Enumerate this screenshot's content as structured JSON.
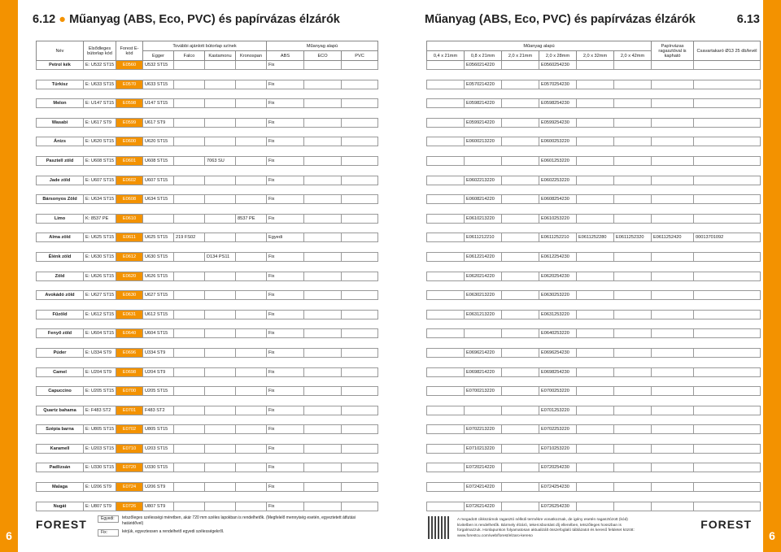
{
  "left": {
    "page_number": "6.12",
    "title": "Műanyag (ABS, Eco, PVC) és papírvázas élzárók",
    "headers": {
      "nev": "Név",
      "elodleges": "Elsődleges bútorlap kód",
      "forest": "Forest E-kód",
      "tovabbi": "További ajánlott bútorlap színek",
      "egger": "Egger",
      "falco": "Falco",
      "kastamonu": "Kastamonu",
      "kronospan": "Kronospan",
      "muanyag": "Műanyag alapú",
      "abs": "ABS",
      "eco": "ECO",
      "pvc": "PVC"
    },
    "rows": [
      {
        "name": "Petrol kék",
        "primary": "E: U532 ST15",
        "ecode": "E0560",
        "egger": "U532 ST15",
        "falco": "",
        "kasta": "",
        "krono": "",
        "abs": "Fix",
        "eco": "",
        "pvc": ""
      },
      {
        "name": "Türkisz",
        "primary": "E: U633 ST15",
        "ecode": "E0570",
        "egger": "U633 ST15",
        "falco": "",
        "kasta": "",
        "krono": "",
        "abs": "Fix",
        "eco": "",
        "pvc": ""
      },
      {
        "name": "Melon",
        "primary": "E: U147 ST15",
        "ecode": "E0598",
        "egger": "U147 ST15",
        "falco": "",
        "kasta": "",
        "krono": "",
        "abs": "Fix",
        "eco": "",
        "pvc": ""
      },
      {
        "name": "Wasabi",
        "primary": "E: U617 ST9",
        "ecode": "E0599",
        "egger": "U617 ST9",
        "falco": "",
        "kasta": "",
        "krono": "",
        "abs": "Fix",
        "eco": "",
        "pvc": ""
      },
      {
        "name": "Ánizs",
        "primary": "E: U620 ST15",
        "ecode": "E0600",
        "egger": "U620 ST15",
        "falco": "",
        "kasta": "",
        "krono": "",
        "abs": "Fix",
        "eco": "",
        "pvc": ""
      },
      {
        "name": "Pasztell zöld",
        "primary": "E: U608 ST15",
        "ecode": "E0601",
        "egger": "U608 ST15",
        "falco": "",
        "kasta": "7063 SU",
        "krono": "",
        "abs": "Fix",
        "eco": "",
        "pvc": ""
      },
      {
        "name": "Jade zöld",
        "primary": "E: U607 ST15",
        "ecode": "E0602",
        "egger": "U607 ST15",
        "falco": "",
        "kasta": "",
        "krono": "",
        "abs": "Fix",
        "eco": "",
        "pvc": ""
      },
      {
        "name": "Bársonyos Zöld",
        "primary": "E: U634 ST15",
        "ecode": "E0608",
        "egger": "U634 ST15",
        "falco": "",
        "kasta": "",
        "krono": "",
        "abs": "Fix",
        "eco": "",
        "pvc": ""
      },
      {
        "name": "Limo",
        "primary": "K: 8537 PE",
        "ecode": "E0610",
        "egger": "",
        "falco": "",
        "kasta": "",
        "krono": "8537 PE",
        "abs": "Fix",
        "eco": "",
        "pvc": ""
      },
      {
        "name": "Alma zöld",
        "primary": "E: U625 ST15",
        "ecode": "E0611",
        "egger": "U625 ST15",
        "falco": "219 FS02",
        "kasta": "",
        "krono": "",
        "abs": "Egyedi",
        "eco": "",
        "pvc": ""
      },
      {
        "name": "Élénk zöld",
        "primary": "E: U630 ST15",
        "ecode": "E0612",
        "egger": "U630 ST15",
        "falco": "",
        "kasta": "D134 PS11",
        "krono": "",
        "abs": "Fix",
        "eco": "",
        "pvc": ""
      },
      {
        "name": "Zöld",
        "primary": "E: U626 ST15",
        "ecode": "E0620",
        "egger": "U626 ST15",
        "falco": "",
        "kasta": "",
        "krono": "",
        "abs": "Fix",
        "eco": "",
        "pvc": ""
      },
      {
        "name": "Avokádó zöld",
        "primary": "E: U627 ST15",
        "ecode": "E0630",
        "egger": "U627 ST15",
        "falco": "",
        "kasta": "",
        "krono": "",
        "abs": "Fix",
        "eco": "",
        "pvc": ""
      },
      {
        "name": "Fűzöld",
        "primary": "E: U612 ST15",
        "ecode": "E0631",
        "egger": "U612 ST15",
        "falco": "",
        "kasta": "",
        "krono": "",
        "abs": "Fix",
        "eco": "",
        "pvc": ""
      },
      {
        "name": "Fenyő zöld",
        "primary": "E: U604 ST15",
        "ecode": "E0640",
        "egger": "U604 ST15",
        "falco": "",
        "kasta": "",
        "krono": "",
        "abs": "Fix",
        "eco": "",
        "pvc": ""
      },
      {
        "name": "Púder",
        "primary": "E: U334 ST9",
        "ecode": "E0696",
        "egger": "U334 ST9",
        "falco": "",
        "kasta": "",
        "krono": "",
        "abs": "Fix",
        "eco": "",
        "pvc": ""
      },
      {
        "name": "Camel",
        "primary": "E: U204 ST9",
        "ecode": "E0698",
        "egger": "U204 ST9",
        "falco": "",
        "kasta": "",
        "krono": "",
        "abs": "Fix",
        "eco": "",
        "pvc": ""
      },
      {
        "name": "Capuccino",
        "primary": "E: U205 ST15",
        "ecode": "E0700",
        "egger": "U205 ST15",
        "falco": "",
        "kasta": "",
        "krono": "",
        "abs": "Fix",
        "eco": "",
        "pvc": ""
      },
      {
        "name": "Quartz bahama",
        "primary": "E: F483 ST2",
        "ecode": "E0701",
        "egger": "F483 ST2",
        "falco": "",
        "kasta": "",
        "krono": "",
        "abs": "Fix",
        "eco": "",
        "pvc": ""
      },
      {
        "name": "Szépia barna",
        "primary": "E: U805 ST15",
        "ecode": "E0702",
        "egger": "U805 ST15",
        "falco": "",
        "kasta": "",
        "krono": "",
        "abs": "Fix",
        "eco": "",
        "pvc": ""
      },
      {
        "name": "Karamell",
        "primary": "E: U203 ST15",
        "ecode": "E0710",
        "egger": "U203 ST15",
        "falco": "",
        "kasta": "",
        "krono": "",
        "abs": "Fix",
        "eco": "",
        "pvc": ""
      },
      {
        "name": "Padlizsán",
        "primary": "E: U330 ST15",
        "ecode": "E0720",
        "egger": "U330 ST15",
        "falco": "",
        "kasta": "",
        "krono": "",
        "abs": "Fix",
        "eco": "",
        "pvc": ""
      },
      {
        "name": "Malaga",
        "primary": "E: U206 ST9",
        "ecode": "E0724",
        "egger": "U206 ST9",
        "falco": "",
        "kasta": "",
        "krono": "",
        "abs": "Fix",
        "eco": "",
        "pvc": ""
      },
      {
        "name": "Nugát",
        "primary": "E: U807 ST9",
        "ecode": "E0726",
        "egger": "U807 ST9",
        "falco": "",
        "kasta": "",
        "krono": "",
        "abs": "Fix",
        "eco": "",
        "pvc": ""
      }
    ],
    "legend": {
      "egyedi_tag": "Egyedi:",
      "egyedi_text": "tetszőleges szélességi méretben, akár 720 mm széles lapokban is rendelhetők. (Megfelelő mennyiség esetén, egyeztetett átfutási határidővel)",
      "fix_tag": "Fix:",
      "fix_text": "kérjük, egyeztessen a rendelhető egyedi szélességekről."
    },
    "logo": "FOREST",
    "footer_number": "6"
  },
  "right": {
    "page_number": "6.13",
    "title": "Műanyag (ABS, Eco, PVC) és papírvázas élzárók",
    "headers": {
      "muanyag": "Műanyag alapú",
      "sizes": [
        "0,4 x 21mm",
        "0,8 x 21mm",
        "2,0 x 21mm",
        "2,0 x 28mm",
        "2,0 x 32mm",
        "2,0 x 42mm"
      ],
      "papir": "Papírvázas ragasztóval is kapható",
      "csavar": "Csavartakaró Ø13 25 db/levél"
    },
    "rows": [
      [
        "",
        "E0560214220",
        "",
        "E0560254230",
        "",
        "",
        "",
        ""
      ],
      [
        "",
        "E0570214220",
        "",
        "E0570254230",
        "",
        "",
        "",
        ""
      ],
      [
        "",
        "E0598214220",
        "",
        "E0598254230",
        "",
        "",
        "",
        ""
      ],
      [
        "",
        "E0599214220",
        "",
        "E0599254230",
        "",
        "",
        "",
        ""
      ],
      [
        "",
        "E0600213220",
        "",
        "E0600253220",
        "",
        "",
        "",
        ""
      ],
      [
        "",
        "",
        "",
        "E0601253220",
        "",
        "",
        "",
        ""
      ],
      [
        "",
        "E0602213220",
        "",
        "E0602253220",
        "",
        "",
        "",
        ""
      ],
      [
        "",
        "E0608214220",
        "",
        "E0608254230",
        "",
        "",
        "",
        ""
      ],
      [
        "",
        "E0610213220",
        "",
        "E0610253220",
        "",
        "",
        "",
        ""
      ],
      [
        "",
        "E0611212210",
        "",
        "E0611252210",
        "E0611252280",
        "E0611252320",
        "E0611252420",
        "00013701092"
      ],
      [
        "",
        "E0612214220",
        "",
        "E0612254230",
        "",
        "",
        "",
        ""
      ],
      [
        "",
        "E0620214220",
        "",
        "E0620254230",
        "",
        "",
        "",
        ""
      ],
      [
        "",
        "E0630213220",
        "",
        "E0630253220",
        "",
        "",
        "",
        ""
      ],
      [
        "",
        "E0631213220",
        "",
        "E0631253220",
        "",
        "",
        "",
        ""
      ],
      [
        "",
        "",
        "",
        "E0640253220",
        "",
        "",
        "",
        ""
      ],
      [
        "",
        "E0696214220",
        "",
        "E0696254230",
        "",
        "",
        "",
        ""
      ],
      [
        "",
        "E0698214220",
        "",
        "E0698254230",
        "",
        "",
        "",
        ""
      ],
      [
        "",
        "E0700213220",
        "",
        "E0700253220",
        "",
        "",
        "",
        ""
      ],
      [
        "",
        "",
        "",
        "E0701253220",
        "",
        "",
        "",
        ""
      ],
      [
        "",
        "E0702213220",
        "",
        "E0702253220",
        "",
        "",
        "",
        ""
      ],
      [
        "",
        "E0710213220",
        "",
        "E0710253220",
        "",
        "",
        "",
        ""
      ],
      [
        "",
        "E0720214220",
        "",
        "E0720254230",
        "",
        "",
        "",
        ""
      ],
      [
        "",
        "E0724214220",
        "",
        "E0724254230",
        "",
        "",
        "",
        ""
      ],
      [
        "",
        "E0726214220",
        "",
        "E0726254230",
        "",
        "",
        "",
        ""
      ]
    ],
    "note": "A megadott cikkszámok ragasztó nélküli termékre vonatkoznak, de igény esetén ragasztózott (kód) kivitelben is rendelhetők. Bármely élzáró, tekercsbontást díj ellenében, tetszőleges hosszban is forgalmazzuk. Honlapunkon folyamatosan aktualizált összefoglaló táblázatot és kereső felületet között: www.forestcu.com/web/forest/elzaro-kereso",
    "logo": "FOREST",
    "footer_number": "6"
  },
  "colors": {
    "accent": "#f39200"
  }
}
